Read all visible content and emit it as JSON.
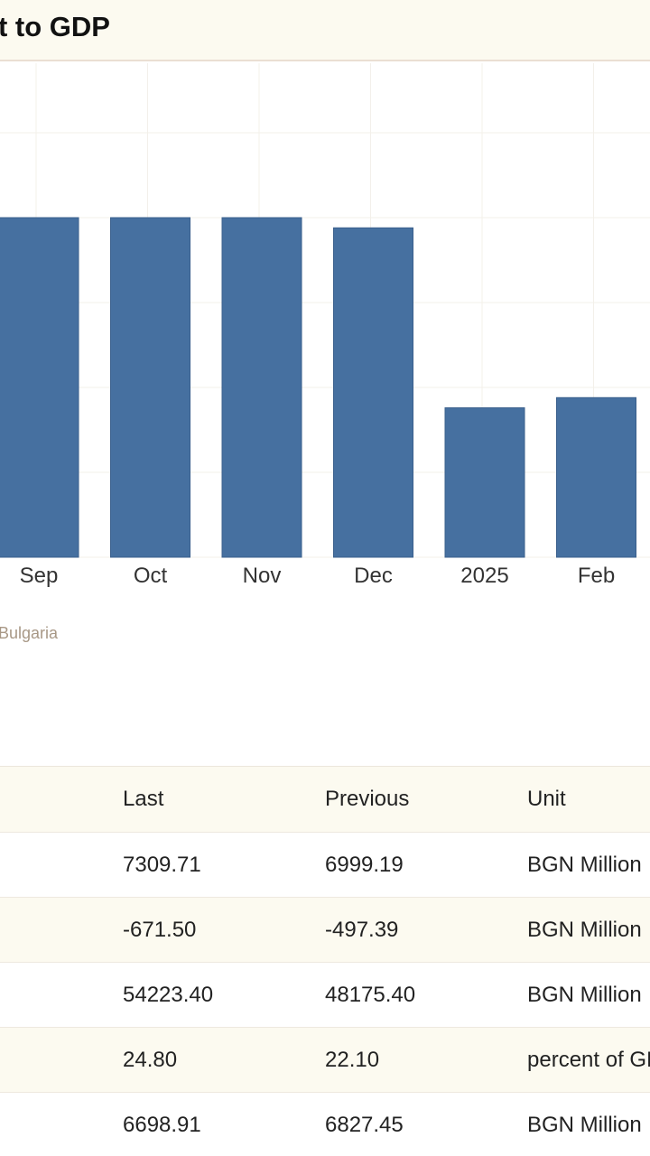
{
  "header": {
    "title": "t to GDP"
  },
  "chart_data": {
    "type": "bar",
    "categories": [
      "Sep",
      "Oct",
      "Nov",
      "Dec",
      "2025",
      "Feb"
    ],
    "values": [
      1.0,
      1.0,
      1.0,
      0.97,
      0.44,
      0.47
    ],
    "value_scale": "relative (no y-axis values visible)",
    "ylim": [
      0,
      1.0
    ],
    "grid": true,
    "bar_color": "#4670a0"
  },
  "source": {
    "text": "Bulgaria"
  },
  "table": {
    "headers": {
      "last": "Last",
      "previous": "Previous",
      "unit": "Unit"
    },
    "rows": [
      {
        "last": "7309.71",
        "previous": "6999.19",
        "unit": "BGN Million"
      },
      {
        "last": "-671.50",
        "previous": "-497.39",
        "unit": "BGN Million"
      },
      {
        "last": "54223.40",
        "previous": "48175.40",
        "unit": "BGN Million"
      },
      {
        "last": "24.80",
        "previous": "22.10",
        "unit": "percent of GDP"
      },
      {
        "last": "6698.91",
        "previous": "6827.45",
        "unit": "BGN Million"
      }
    ]
  },
  "colors": {
    "header_bg": "#fcfaf0",
    "source_text": "#a89886"
  }
}
